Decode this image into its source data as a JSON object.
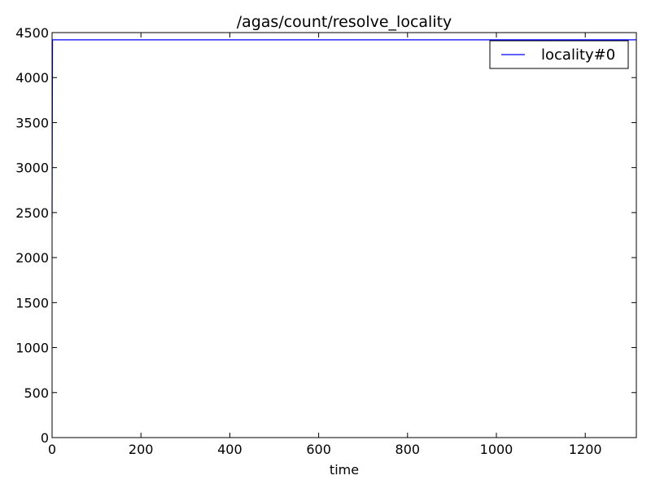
{
  "chart_data": {
    "type": "line",
    "title": "/agas/count/resolve_locality",
    "xlabel": "time",
    "ylabel": "",
    "xlim": [
      0,
      1315
    ],
    "ylim": [
      0,
      4500
    ],
    "xticks": [
      0,
      200,
      400,
      600,
      800,
      1000,
      1200
    ],
    "yticks": [
      0,
      500,
      1000,
      1500,
      2000,
      2500,
      3000,
      3500,
      4000,
      4500
    ],
    "grid": false,
    "legend_position": "top-right",
    "series": [
      {
        "name": "locality#0",
        "color": "#0000ff",
        "x": [
          0,
          1,
          1315
        ],
        "y": [
          2450,
          4420,
          4420
        ]
      }
    ]
  }
}
